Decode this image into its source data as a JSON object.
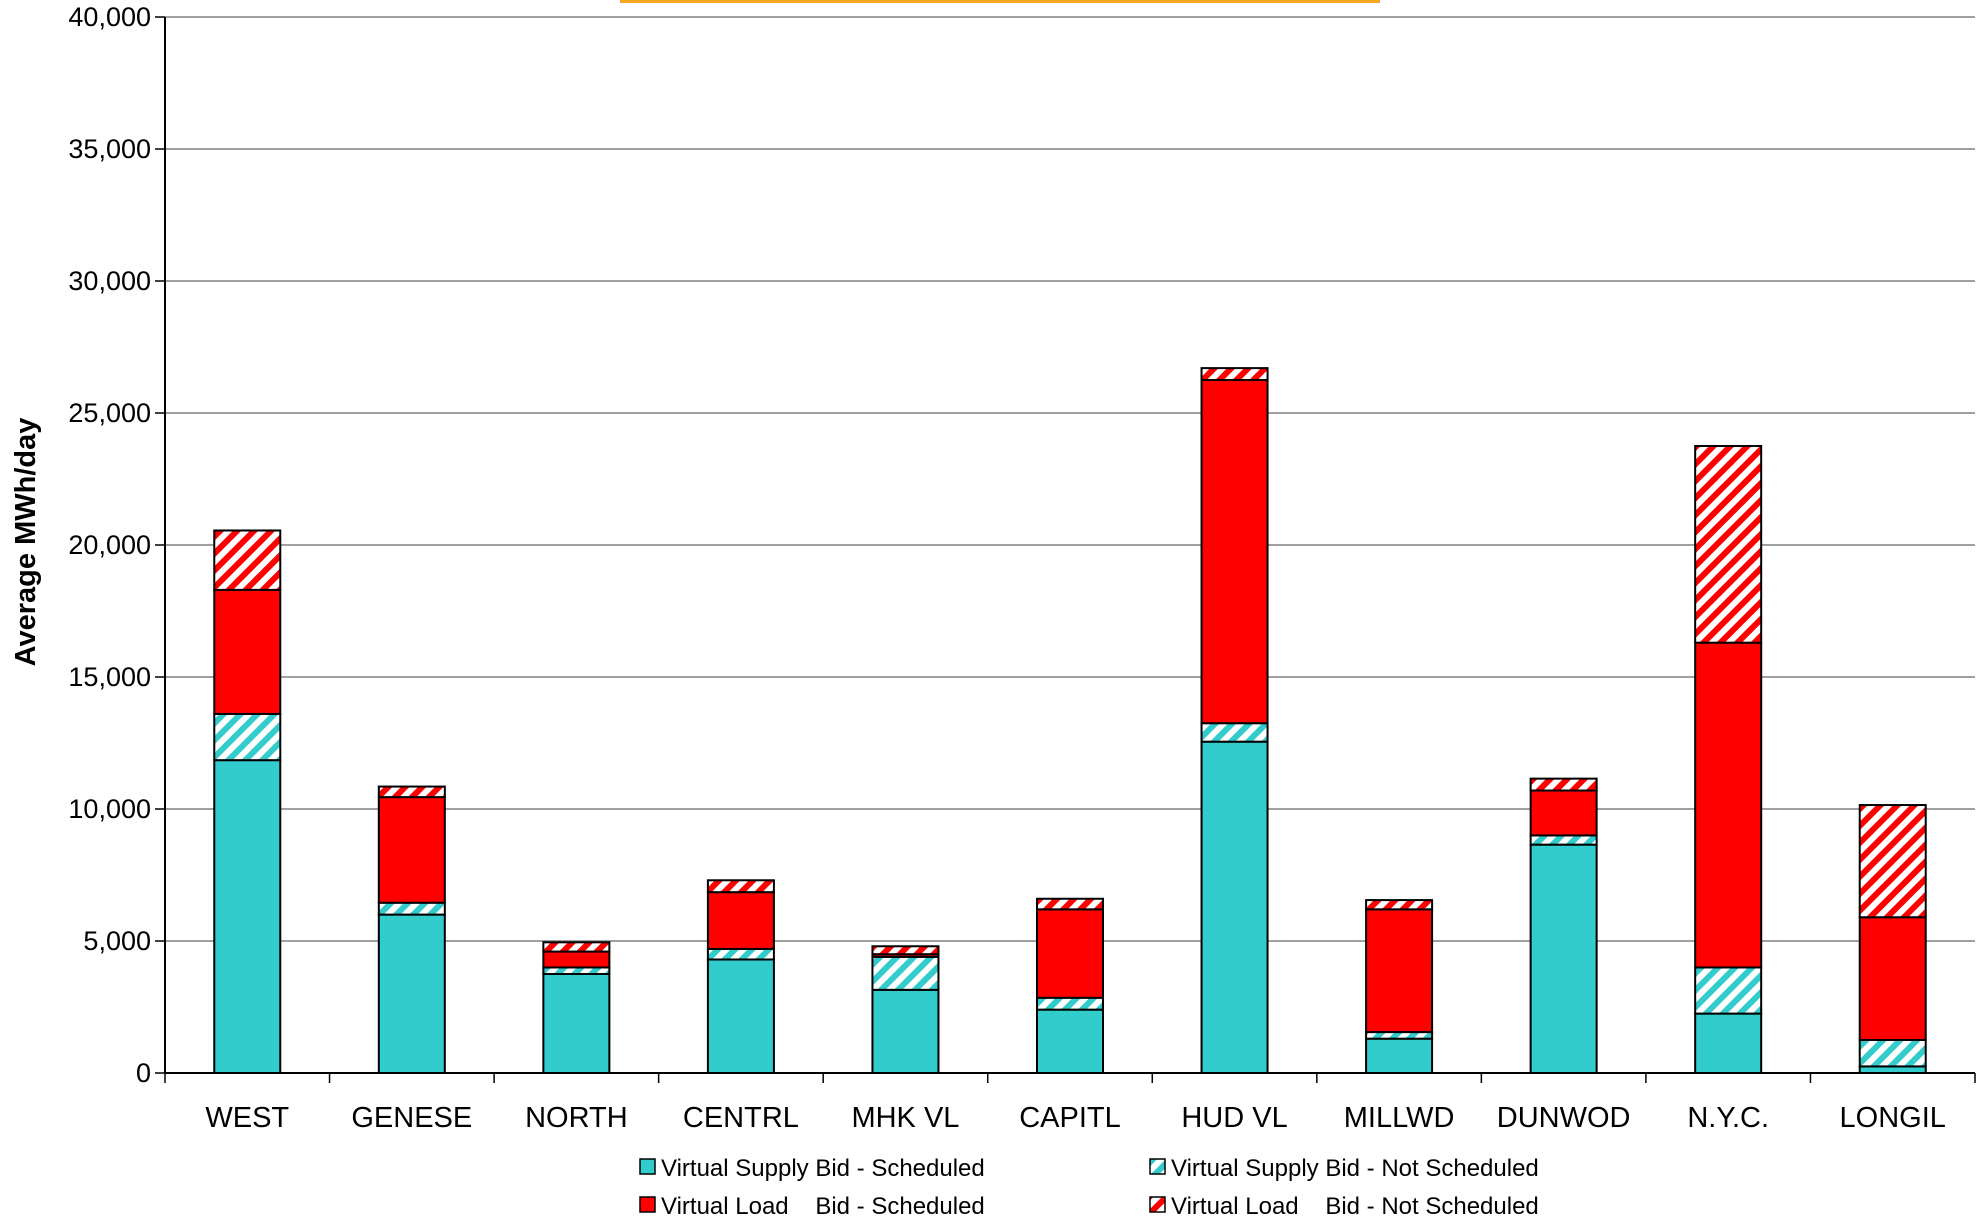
{
  "chart_data": {
    "type": "bar",
    "stacked": true,
    "ylabel": "Average MWh/day",
    "xlabel": "",
    "ylim": [
      0,
      40000
    ],
    "yticks": [
      0,
      5000,
      10000,
      15000,
      20000,
      25000,
      30000,
      35000,
      40000
    ],
    "ytick_labels": [
      "0",
      "5,000",
      "10,000",
      "15,000",
      "20,000",
      "25,000",
      "30,000",
      "35,000",
      "40,000"
    ],
    "grid": true,
    "legend_position": "bottom",
    "categories": [
      "WEST",
      "GENESE",
      "NORTH",
      "CENTRL",
      "MHK VL",
      "CAPITL",
      "HUD VL",
      "MILLWD",
      "DUNWOD",
      "N.Y.C.",
      "LONGIL"
    ],
    "series": [
      {
        "name": "Virtual Supply Bid - Scheduled",
        "color": "#33CCCC",
        "pattern": "solid",
        "values": [
          11850,
          6000,
          3750,
          4300,
          3150,
          2400,
          12550,
          1300,
          8650,
          2250,
          250
        ]
      },
      {
        "name": "Virtual Supply Bid - Not Scheduled",
        "color": "#33CCCC",
        "pattern": "hatched",
        "values": [
          1750,
          450,
          250,
          400,
          1250,
          450,
          700,
          250,
          350,
          1750,
          1000
        ]
      },
      {
        "name": "Virtual Load    Bid - Scheduled",
        "color": "#FF0000",
        "pattern": "solid",
        "values": [
          4700,
          4000,
          600,
          2150,
          100,
          3350,
          13000,
          4650,
          1700,
          12300,
          4650
        ]
      },
      {
        "name": "Virtual Load    Bid - Not Scheduled",
        "color": "#FF0000",
        "pattern": "hatched",
        "values": [
          2250,
          400,
          350,
          450,
          300,
          400,
          450,
          350,
          450,
          7450,
          4250
        ]
      }
    ]
  },
  "title_band_color": "#F5A623"
}
